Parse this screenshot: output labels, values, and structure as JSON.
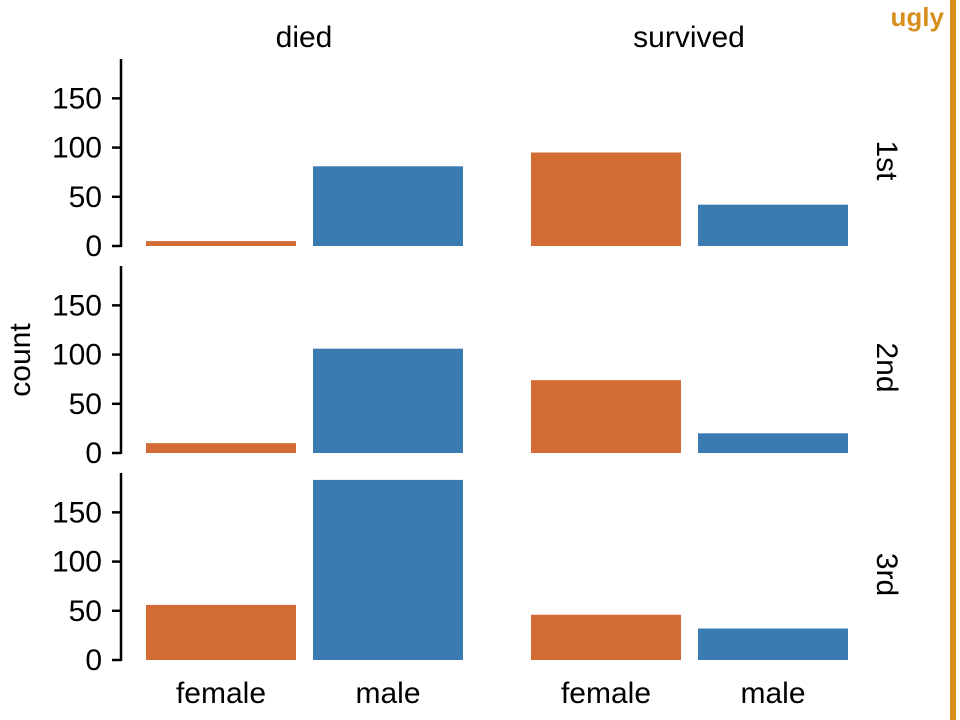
{
  "badge": {
    "label": "ugly",
    "color": "#D68E1C"
  },
  "chart_data": {
    "type": "bar",
    "title": "",
    "xlabel": "",
    "ylabel": "count",
    "ylim": [
      0,
      190
    ],
    "yticks": [
      0,
      50,
      100,
      150
    ],
    "categories": [
      "female",
      "male"
    ],
    "colors": {
      "female": "#D36B35",
      "male": "#3A7BB2"
    },
    "columns": [
      "died",
      "survived"
    ],
    "rows": [
      "1st",
      "2nd",
      "3rd"
    ],
    "panels": [
      {
        "row": "1st",
        "column": "died",
        "values": [
          5,
          81
        ]
      },
      {
        "row": "1st",
        "column": "survived",
        "values": [
          95,
          42
        ]
      },
      {
        "row": "2nd",
        "column": "died",
        "values": [
          10,
          106
        ]
      },
      {
        "row": "2nd",
        "column": "survived",
        "values": [
          74,
          20
        ]
      },
      {
        "row": "3rd",
        "column": "died",
        "values": [
          56,
          183
        ]
      },
      {
        "row": "3rd",
        "column": "survived",
        "values": [
          46,
          32
        ]
      }
    ]
  }
}
